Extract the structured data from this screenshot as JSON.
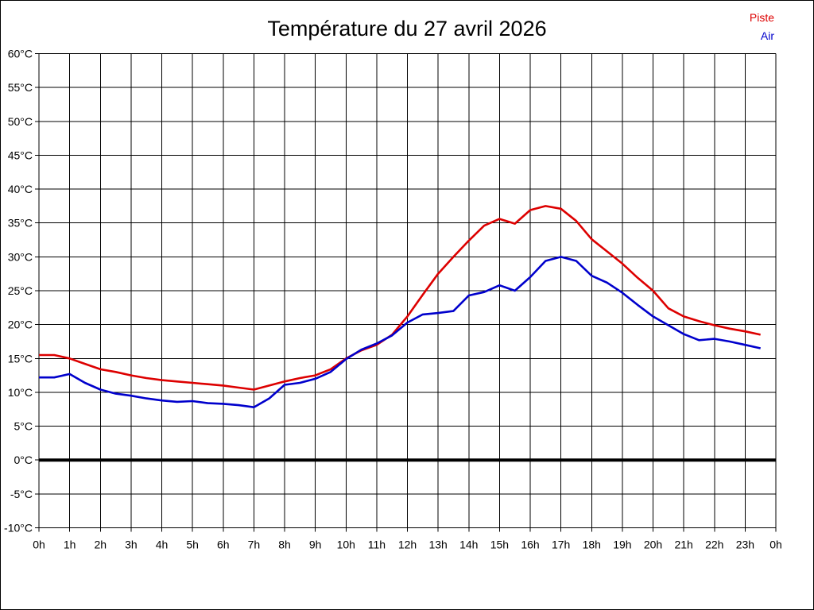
{
  "title": "Température du 27 avril 2026",
  "legend": {
    "items": [
      {
        "label": "Piste",
        "color": "#dd0000"
      },
      {
        "label": "Air",
        "color": "#0000cc"
      }
    ]
  },
  "chart_data": {
    "type": "line",
    "title": "Température du 27 avril 2026",
    "xlabel": "",
    "ylabel": "",
    "xlim": [
      0,
      24
    ],
    "ylim": [
      -10,
      60
    ],
    "y_step": 5,
    "x_step_hours": 1,
    "grid": true,
    "zero_line_at": 0,
    "legend_position": "top-right",
    "x_tick_labels": [
      "0h",
      "1h",
      "2h",
      "3h",
      "4h",
      "5h",
      "6h",
      "7h",
      "8h",
      "9h",
      "10h",
      "11h",
      "12h",
      "13h",
      "14h",
      "15h",
      "16h",
      "17h",
      "18h",
      "19h",
      "20h",
      "21h",
      "22h",
      "23h",
      "0h"
    ],
    "y_tick_labels": [
      "60°C",
      "55°C",
      "50°C",
      "45°C",
      "40°C",
      "35°C",
      "30°C",
      "25°C",
      "20°C",
      "15°C",
      "10°C",
      "5°C",
      "0°C",
      "-5°C",
      "-10°C"
    ],
    "series": [
      {
        "name": "Piste",
        "color": "#dd0000",
        "x": [
          0,
          0.5,
          1,
          1.5,
          2,
          2.5,
          3,
          3.5,
          4,
          4.5,
          5,
          5.5,
          6,
          6.5,
          7,
          7.5,
          8,
          8.5,
          9,
          9.5,
          10,
          10.5,
          11,
          11.5,
          12,
          12.5,
          13,
          13.5,
          14,
          14.5,
          15,
          15.5,
          16,
          16.5,
          17,
          17.5,
          18,
          18.5,
          19,
          19.5,
          20,
          20.5,
          21,
          21.5,
          22,
          22.5,
          23,
          23.5
        ],
        "values": [
          15.5,
          15.5,
          15.0,
          14.2,
          13.4,
          13.0,
          12.5,
          12.1,
          11.8,
          11.6,
          11.4,
          11.2,
          11.0,
          10.7,
          10.4,
          11.0,
          11.6,
          12.1,
          12.5,
          13.4,
          15.0,
          16.2,
          17.0,
          18.5,
          21.2,
          24.4,
          27.5,
          30.0,
          32.4,
          34.6,
          35.6,
          34.9,
          36.9,
          37.5,
          37.1,
          35.3,
          32.6,
          30.8,
          29.0,
          26.9,
          25.0,
          22.4,
          21.2,
          20.5,
          19.9,
          19.4,
          19.0,
          18.5
        ]
      },
      {
        "name": "Air",
        "color": "#0000cc",
        "x": [
          0,
          0.5,
          1,
          1.5,
          2,
          2.5,
          3,
          3.5,
          4,
          4.5,
          5,
          5.5,
          6,
          6.5,
          7,
          7.5,
          8,
          8.5,
          9,
          9.5,
          10,
          10.5,
          11,
          11.5,
          12,
          12.5,
          13,
          13.5,
          14,
          14.5,
          15,
          15.5,
          16,
          16.5,
          17,
          17.5,
          18,
          18.5,
          19,
          19.5,
          20,
          20.5,
          21,
          21.5,
          22,
          22.5,
          23,
          23.5
        ],
        "values": [
          12.2,
          12.2,
          12.7,
          11.4,
          10.4,
          9.8,
          9.5,
          9.1,
          8.8,
          8.6,
          8.7,
          8.4,
          8.3,
          8.1,
          7.8,
          9.1,
          11.1,
          11.4,
          12.0,
          13.0,
          14.9,
          16.3,
          17.2,
          18.4,
          20.3,
          21.5,
          21.7,
          22.0,
          24.3,
          24.8,
          25.8,
          25.0,
          27.0,
          29.4,
          30.0,
          29.4,
          27.2,
          26.2,
          24.7,
          22.9,
          21.2,
          19.9,
          18.6,
          17.7,
          17.9,
          17.5,
          17.0,
          16.5
        ]
      }
    ]
  }
}
